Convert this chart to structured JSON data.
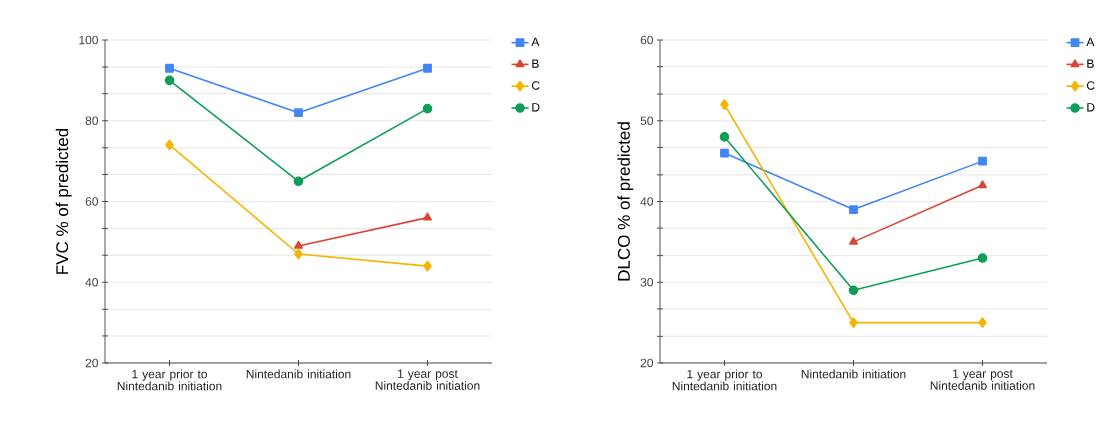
{
  "chart_data": [
    {
      "type": "line",
      "ylabel": "FVC % of predicted",
      "categories": [
        "1 year prior to Nintedanib initiation",
        "Nintedanib initiation",
        "1 year post Nintedanib initiation"
      ],
      "series": [
        {
          "name": "A",
          "color": "#4285f4",
          "marker": "square",
          "values": [
            93,
            82,
            93
          ]
        },
        {
          "name": "B",
          "color": "#db4437",
          "marker": "triangle",
          "values": [
            null,
            49,
            56
          ]
        },
        {
          "name": "C",
          "color": "#f4b400",
          "marker": "diamond",
          "values": [
            74,
            47,
            44
          ]
        },
        {
          "name": "D",
          "color": "#0f9d58",
          "marker": "circle",
          "values": [
            90,
            65,
            83
          ]
        }
      ],
      "ylim": [
        20,
        100
      ],
      "yticks": [
        20,
        {
          "value": 26.7,
          "label": null
        },
        {
          "value": 33.3,
          "label": null
        },
        40,
        {
          "value": 46.7,
          "label": null
        },
        {
          "value": 53.3,
          "label": null
        },
        60,
        {
          "value": 66.7,
          "label": null
        },
        {
          "value": 73.3,
          "label": null
        },
        80,
        {
          "value": 86.7,
          "label": null
        },
        {
          "value": 93.3,
          "label": null
        },
        100
      ],
      "grid": "y",
      "legend": "top right",
      "line_style": "solid"
    },
    {
      "type": "line",
      "ylabel": "DLCO % of predicted",
      "categories": [
        "1 year prior to Nintedanib initiation",
        "Nintedanib initiation",
        "1 year post Nintedanib initiation"
      ],
      "series": [
        {
          "name": "A",
          "color": "#4285f4",
          "marker": "square",
          "values": [
            46,
            39,
            45
          ]
        },
        {
          "name": "B",
          "color": "#db4437",
          "marker": "triangle",
          "values": [
            null,
            35,
            42
          ]
        },
        {
          "name": "C",
          "color": "#f4b400",
          "marker": "diamond",
          "values": [
            52,
            25,
            25
          ]
        },
        {
          "name": "D",
          "color": "#0f9d58",
          "marker": "circle",
          "values": [
            48,
            29,
            33
          ]
        }
      ],
      "ylim": [
        20,
        60
      ],
      "yticks": [
        20,
        {
          "value": 23.3,
          "label": null
        },
        {
          "value": 26.7,
          "label": null
        },
        30,
        {
          "value": 33.3,
          "label": null
        },
        {
          "value": 36.7,
          "label": null
        },
        40,
        {
          "value": 43.3,
          "label": null
        },
        {
          "value": 46.7,
          "label": null
        },
        50,
        {
          "value": 53.3,
          "label": null
        },
        {
          "value": 56.7,
          "label": null
        },
        60
      ],
      "grid": "y",
      "legend": "top right",
      "line_style": "solid"
    }
  ]
}
